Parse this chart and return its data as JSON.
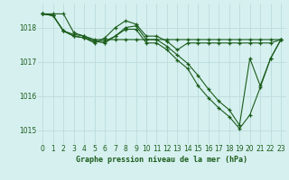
{
  "title": "Graphe pression niveau de la mer (hPa)",
  "bg_color": "#d6f0f0",
  "grid_color": "#c0dede",
  "line_color": "#1a5c1a",
  "xlim": [
    -0.5,
    23.5
  ],
  "ylim": [
    1014.6,
    1018.7
  ],
  "yticks": [
    1015,
    1016,
    1017,
    1018
  ],
  "xticks": [
    0,
    1,
    2,
    3,
    4,
    5,
    6,
    7,
    8,
    9,
    10,
    11,
    12,
    13,
    14,
    15,
    16,
    17,
    18,
    19,
    20,
    21,
    22,
    23
  ],
  "series": [
    [
      1018.4,
      1018.4,
      1018.4,
      1017.85,
      1017.75,
      1017.65,
      1017.65,
      1017.65,
      1017.65,
      1017.65,
      1017.65,
      1017.65,
      1017.65,
      1017.65,
      1017.65,
      1017.65,
      1017.65,
      1017.65,
      1017.65,
      1017.65,
      1017.65,
      1017.65,
      1017.65,
      1017.65
    ],
    [
      1018.4,
      1018.35,
      1017.9,
      1017.75,
      1017.7,
      1017.55,
      1017.7,
      1018.0,
      1018.2,
      1018.1,
      1017.75,
      1017.75,
      1017.6,
      1017.35,
      1017.55,
      1017.55,
      1017.55,
      1017.55,
      1017.55,
      1017.55,
      1017.55,
      1017.55,
      1017.55,
      1017.65
    ],
    [
      1018.4,
      1018.35,
      1017.9,
      1017.75,
      1017.7,
      1017.6,
      1017.55,
      1017.75,
      1018.0,
      1018.05,
      1017.65,
      1017.65,
      1017.45,
      1017.2,
      1016.95,
      1016.6,
      1016.2,
      1015.85,
      1015.6,
      1015.15,
      1017.1,
      1016.3,
      1017.1,
      1017.65
    ],
    [
      1018.4,
      1018.35,
      1017.9,
      1017.8,
      1017.75,
      1017.6,
      1017.6,
      1017.75,
      1017.95,
      1017.95,
      1017.55,
      1017.55,
      1017.35,
      1017.05,
      1016.8,
      1016.3,
      1015.95,
      1015.65,
      1015.4,
      1015.05,
      1015.45,
      1016.25,
      1017.1,
      1017.65
    ]
  ]
}
